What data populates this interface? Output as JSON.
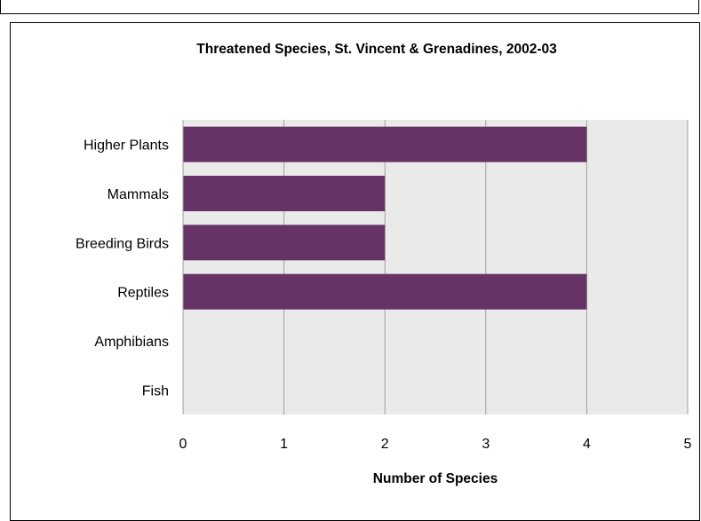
{
  "chart_data": {
    "type": "bar",
    "orientation": "horizontal",
    "title": "Threatened Species, St. Vincent & Grenadines, 2002-03",
    "xlabel": "Number of Species",
    "ylabel": "",
    "categories": [
      "Higher Plants",
      "Mammals",
      "Breeding Birds",
      "Reptiles",
      "Amphibians",
      "Fish"
    ],
    "values": [
      4,
      2,
      2,
      4,
      0,
      0
    ],
    "xlim": [
      0,
      5
    ],
    "xticks": [
      "0",
      "1",
      "2",
      "3",
      "4",
      "5"
    ],
    "grid": "vertical",
    "legend": "none",
    "colors": {
      "bar": "#663366",
      "plot_bg": "#eaeaea",
      "grid": "#a0a0a0"
    }
  }
}
